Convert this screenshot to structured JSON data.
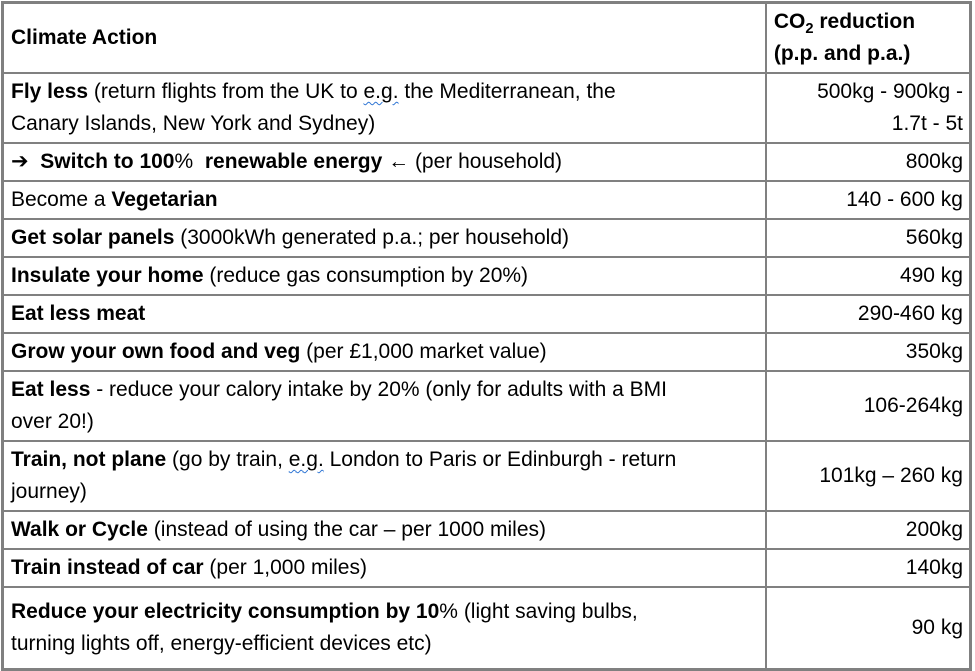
{
  "page": {
    "background_color": "#ffffff",
    "border_color": "#808080",
    "text_color": "#000000",
    "squiggle_color": "#2e75d4"
  },
  "table": {
    "header": {
      "action_label": "Climate Action",
      "co2_prefix": "CO",
      "co2_subscript": "2",
      "co2_suffix": " reduction",
      "co2_line2": "(p.p. and p.a.)"
    },
    "rows": [
      {
        "action": [
          {
            "t": "Fly less",
            "b": true
          },
          {
            "t": " (return flights from the UK to ",
            "b": false
          },
          {
            "t": "e.g.",
            "b": false,
            "sq": true
          },
          {
            "t": " the Mediterranean, the",
            "b": false
          },
          {
            "br": true
          },
          {
            "t": "Canary Islands, New York and Sydney)",
            "b": false
          }
        ],
        "value": [
          "500kg - 900kg -",
          "1.7t - 5t"
        ]
      },
      {
        "action": [
          {
            "t": "➔",
            "b": true,
            "icon": "right-arrow-icon"
          },
          {
            "t": "  ",
            "b": false
          },
          {
            "t": "Switch to 100",
            "b": true
          },
          {
            "t": "%",
            "b": false
          },
          {
            "t": "  ",
            "b": false
          },
          {
            "t": "renewable energy",
            "b": true
          },
          {
            "t": " ",
            "b": false
          },
          {
            "t": "←",
            "b": false,
            "icon": "left-arrow-icon"
          },
          {
            "t": " (per household)",
            "b": false
          }
        ],
        "value": [
          "800kg"
        ]
      },
      {
        "action": [
          {
            "t": "Become a ",
            "b": false
          },
          {
            "t": "Vegetarian",
            "b": true
          }
        ],
        "value": [
          "140 - 600 kg"
        ]
      },
      {
        "action": [
          {
            "t": "Get solar panels",
            "b": true
          },
          {
            "t": " (3000kWh generated p.a.; per household)",
            "b": false
          }
        ],
        "value": [
          "560kg"
        ]
      },
      {
        "action": [
          {
            "t": "Insulate your home",
            "b": true
          },
          {
            "t": " (reduce gas consumption by 20%)",
            "b": false
          }
        ],
        "value": [
          "490 kg"
        ]
      },
      {
        "action": [
          {
            "t": "Eat less meat",
            "b": true
          }
        ],
        "value": [
          "290-460 kg"
        ]
      },
      {
        "action": [
          {
            "t": "Grow your own food and veg",
            "b": true
          },
          {
            "t": " (per £1,000 market value)",
            "b": false
          }
        ],
        "value": [
          "350kg"
        ]
      },
      {
        "action": [
          {
            "t": "Eat less",
            "b": true
          },
          {
            "t": " - reduce your calory intake by 20% (only for adults with a BMI",
            "b": false
          },
          {
            "br": true
          },
          {
            "t": "over 20!)",
            "b": false
          }
        ],
        "value": [
          "106-264kg"
        ]
      },
      {
        "action": [
          {
            "t": "Train, not plane",
            "b": true
          },
          {
            "t": " (go by train, ",
            "b": false
          },
          {
            "t": "e.g.",
            "b": false,
            "sq": true
          },
          {
            "t": " London to Paris or Edinburgh - return",
            "b": false
          },
          {
            "br": true
          },
          {
            "t": "journey)",
            "b": false
          }
        ],
        "value": [
          "101kg – 260 kg"
        ]
      },
      {
        "action": [
          {
            "t": "Walk or Cycle",
            "b": true
          },
          {
            "t": " (instead of using the car – per 1000 miles)",
            "b": false
          }
        ],
        "value": [
          "200kg"
        ]
      },
      {
        "action": [
          {
            "t": "Train instead of car",
            "b": true
          },
          {
            "t": " (per 1,000 miles)",
            "b": false
          }
        ],
        "value": [
          "140kg"
        ]
      },
      {
        "action": [
          {
            "t": "Reduce your electricity consumption by 10",
            "b": true
          },
          {
            "t": "%",
            "b": false
          },
          {
            "t": " (light saving bulbs,",
            "b": false
          },
          {
            "br": true
          },
          {
            "t": "turning lights off, energy-efficient devices etc)",
            "b": false
          }
        ],
        "value": [
          "90 kg"
        ]
      }
    ]
  },
  "chart_data": {
    "type": "table",
    "columns": [
      "Climate Action",
      "CO2 reduction (p.p. and p.a.)"
    ],
    "rows": [
      [
        "Fly less (return flights from the UK to e.g. the Mediterranean, the Canary Islands, New York and Sydney)",
        "500kg - 900kg - 1.7t - 5t"
      ],
      [
        "➔ Switch to 100% renewable energy ← (per household)",
        "800kg"
      ],
      [
        "Become a Vegetarian",
        "140 - 600 kg"
      ],
      [
        "Get solar panels (3000kWh generated p.a.; per household)",
        "560kg"
      ],
      [
        "Insulate your home (reduce gas consumption by 20%)",
        "490 kg"
      ],
      [
        "Eat less meat",
        "290-460 kg"
      ],
      [
        "Grow your own food and veg (per £1,000 market value)",
        "350kg"
      ],
      [
        "Eat less - reduce your calory intake by 20% (only for adults with a BMI over 20!)",
        "106-264kg"
      ],
      [
        "Train, not plane (go by train, e.g. London to Paris or Edinburgh - return journey)",
        "101kg – 260 kg"
      ],
      [
        "Walk or Cycle (instead of using the car – per 1000 miles)",
        "200kg"
      ],
      [
        "Train instead of car (per 1,000 miles)",
        "140kg"
      ],
      [
        "Reduce your electricity consumption by 10% (light saving bulbs, turning lights off, energy-efficient devices etc)",
        "90 kg"
      ]
    ]
  }
}
